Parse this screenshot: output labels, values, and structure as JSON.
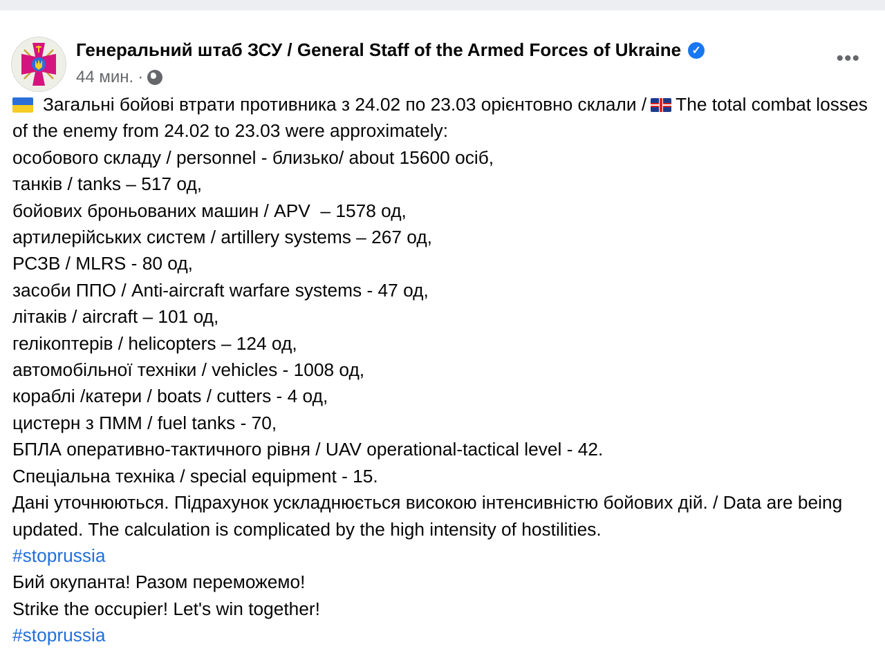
{
  "post": {
    "author": "Генеральний штаб ЗСУ / General Staff of the Armed Forces of Ukraine",
    "time": "44 мин.",
    "separator": "·",
    "more_label": "•••",
    "icons": {
      "avatar": "armed-forces-emblem",
      "verified": "verified-badge",
      "audience": "globe-icon",
      "flag1": "ukraine-flag",
      "flag2": "uk-flag"
    },
    "intro_ua": "Загальні бойові втрати противника з 24.02 по 23.03 орієнтовно склали /",
    "intro_en": "The total combat losses of the enemy from 24.02 to 23.03 were approximately:",
    "lines": [
      "особового складу / personnel - близько/ about 15600 осіб,",
      "танків / tanks – 517 од,",
      "бойових броньованих машин / APV  – 1578 од,",
      "артилерійських систем / artillery systems – 267 од,",
      "РСЗВ / MLRS - 80 од,",
      "засоби ППО / Anti-aircraft warfare systems - 47 од,",
      "літаків / aircraft – 101 од,",
      "гелікоптерів / helicopters – 124 од,",
      "автомобільної техніки / vehicles - 1008 од,",
      "кораблі /катери / boats / cutters - 4 од,",
      "цистерн з ПММ / fuel tanks - 70,",
      "БПЛА оперативно-тактичного рівня / UAV operational-tactical level - 42.",
      "Спеціальна техніка / special equipment - 15.",
      "Дані уточнюються. Підрахунок ускладнюється високою інтенсивністю бойових дій. / Data are being updated. The calculation is complicated by the high intensity of hostilities."
    ],
    "hashtag1": "#stoprussia",
    "closing_ua": "Бий окупанта! Разом переможемо!",
    "closing_en": "Strike the occupier! Let's win together!",
    "hashtag2": "#stoprussia"
  }
}
